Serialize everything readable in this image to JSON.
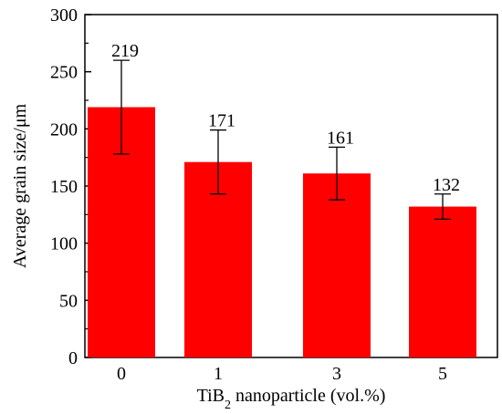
{
  "chart_data": {
    "type": "bar",
    "title": "",
    "xlabel": "TiB",
    "xlabel_sub": "2",
    "xlabel_rest": " nanoparticle (vol.%)",
    "ylabel": "Average grain size/μm",
    "categories": [
      "0",
      "1",
      "3",
      "5"
    ],
    "series": [
      {
        "values": [
          219,
          171,
          161,
          132
        ],
        "error": [
          41,
          28,
          23,
          11
        ],
        "color": "#ff0000"
      }
    ],
    "data_labels": [
      "219",
      "171",
      "161",
      "132"
    ],
    "ylim": [
      0,
      300
    ],
    "yticks": [
      "0",
      "50",
      "100",
      "150",
      "200",
      "250",
      "300"
    ],
    "grid": false,
    "legend": "none"
  }
}
